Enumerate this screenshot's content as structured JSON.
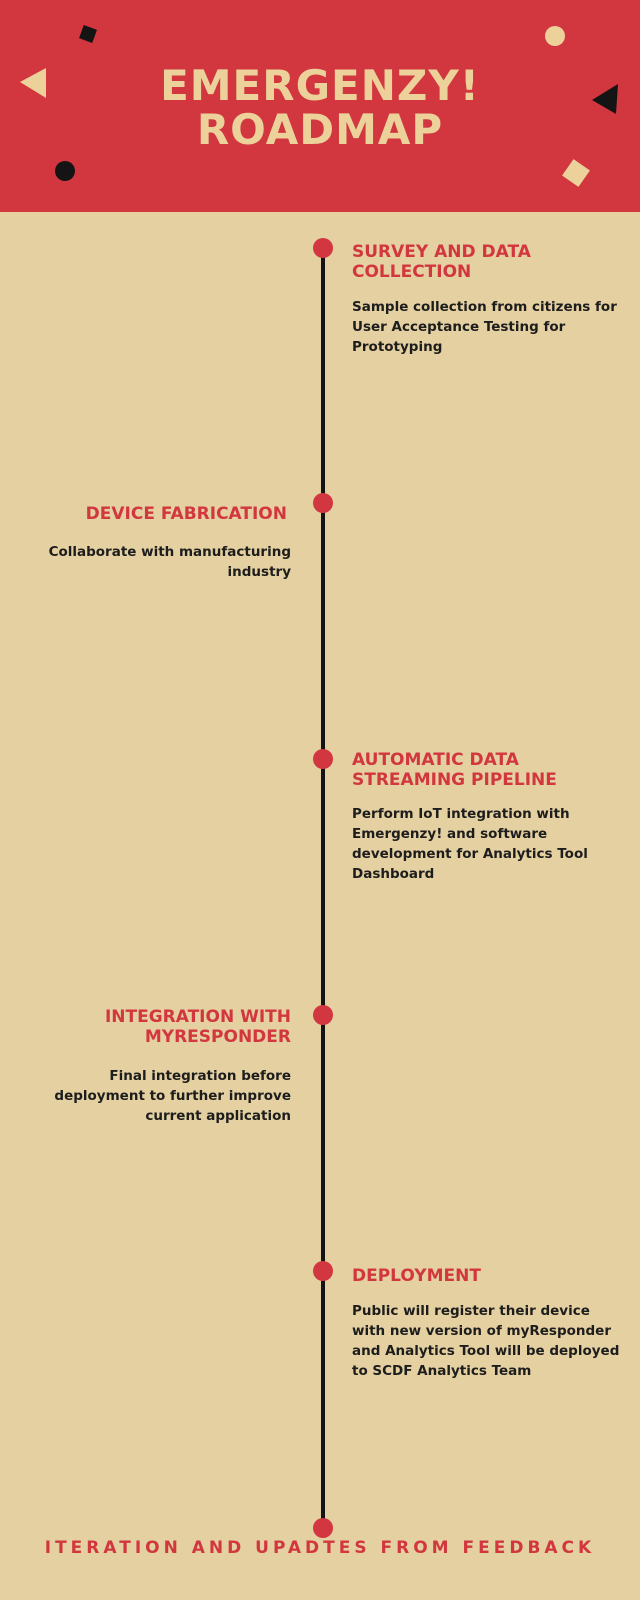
{
  "header": {
    "title_line1": "EMERGENZY!",
    "title_line2": "ROADMAP",
    "background_color": "#d2373f",
    "title_color": "#ecd29a"
  },
  "milestones": [
    {
      "title": "SURVEY AND DATA COLLECTION",
      "description": "Sample collection from citizens for User Acceptance Testing for Prototyping",
      "side": "right"
    },
    {
      "title": "DEVICE FABRICATION",
      "description": "Collaborate with manufacturing industry",
      "side": "left"
    },
    {
      "title": "AUTOMATIC DATA STREAMING PIPELINE",
      "description": "Perform IoT integration with Emergenzy! and software development for Analytics Tool Dashboard",
      "side": "right"
    },
    {
      "title": "INTEGRATION WITH MYRESPONDER",
      "description": "Final integration before deployment to further improve current application",
      "side": "left"
    },
    {
      "title": "DEPLOYMENT",
      "description": "Public will register their device with new version of myResponder and Analytics Tool will be deployed to SCDF Analytics Team",
      "side": "right"
    }
  ],
  "footer": {
    "label": "ITERATION AND UPADTES FROM FEEDBACK"
  },
  "colors": {
    "page_background": "#e4d0a0",
    "accent_red": "#d2373f",
    "line_black": "#141414",
    "text_dark": "#1d1d1d"
  }
}
